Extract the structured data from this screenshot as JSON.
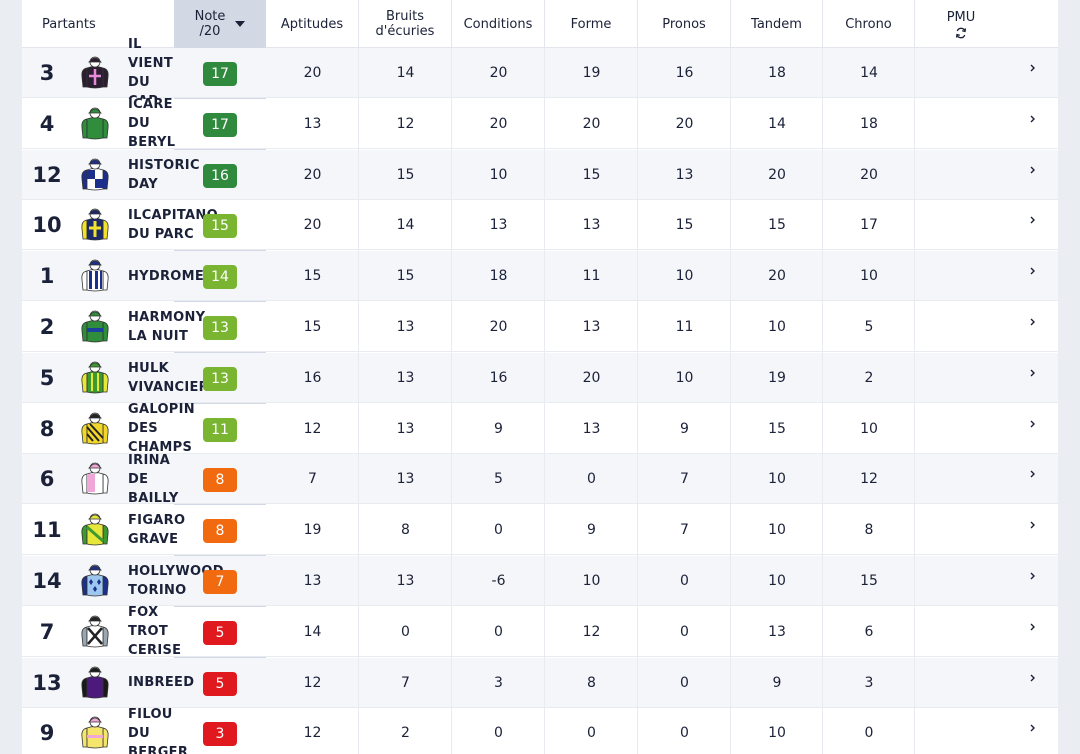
{
  "header": {
    "partants": "Partants",
    "note": "Note\n/20",
    "aptitudes": "Aptitudes",
    "bruits": "Bruits\nd'écuries",
    "conditions": "Conditions",
    "forme": "Forme",
    "pronos": "Pronos",
    "tandem": "Tandem",
    "chrono": "Chrono",
    "pmu": "PMU",
    "sort_icon": "caret-down",
    "refresh_icon": "refresh"
  },
  "colors": {
    "dark_green": "#2f8a3e",
    "light_green": "#7ab532",
    "orange": "#f26a10",
    "red": "#e0191f"
  },
  "rows": [
    {
      "num": "3",
      "name": "IL\nVIENT\nDU\nCAP",
      "note": "17",
      "tier": "dark_green",
      "scores": [
        "20",
        "14",
        "20",
        "19",
        "16",
        "18",
        "14"
      ],
      "silk": "black-pink-cross"
    },
    {
      "num": "4",
      "name": "ICARE\nDU\nBERYL",
      "note": "17",
      "tier": "dark_green",
      "scores": [
        "13",
        "12",
        "20",
        "20",
        "20",
        "14",
        "18"
      ],
      "silk": "green"
    },
    {
      "num": "12",
      "name": "HISTORIC\nDAY",
      "note": "16",
      "tier": "dark_green",
      "scores": [
        "20",
        "15",
        "10",
        "15",
        "13",
        "20",
        "20"
      ],
      "silk": "blue-white-quartered"
    },
    {
      "num": "10",
      "name": "ILCAPITANO\nDU PARC",
      "note": "15",
      "tier": "light_green",
      "scores": [
        "20",
        "14",
        "13",
        "13",
        "15",
        "15",
        "17"
      ],
      "silk": "navy-yellow-cross"
    },
    {
      "num": "1",
      "name": "HYDROME",
      "note": "14",
      "tier": "light_green",
      "scores": [
        "15",
        "15",
        "18",
        "11",
        "10",
        "20",
        "10"
      ],
      "silk": "blue-white-stripes"
    },
    {
      "num": "2",
      "name": "HARMONY\nLA NUIT",
      "note": "13",
      "tier": "light_green",
      "scores": [
        "15",
        "13",
        "20",
        "13",
        "11",
        "10",
        "5"
      ],
      "silk": "green-blue-band"
    },
    {
      "num": "5",
      "name": "HULK\nVIVANCIERE",
      "note": "13",
      "tier": "light_green",
      "scores": [
        "16",
        "13",
        "16",
        "20",
        "10",
        "19",
        "2"
      ],
      "silk": "green-yellow-stripes"
    },
    {
      "num": "8",
      "name": "GALOPIN\nDES\nCHAMPS",
      "note": "11",
      "tier": "light_green",
      "scores": [
        "12",
        "13",
        "9",
        "13",
        "9",
        "15",
        "10"
      ],
      "silk": "yellow-black-diagonal"
    },
    {
      "num": "6",
      "name": "IRINA\nDE\nBAILLY",
      "note": "8",
      "tier": "orange",
      "scores": [
        "7",
        "13",
        "5",
        "0",
        "7",
        "10",
        "12"
      ],
      "silk": "pink-white"
    },
    {
      "num": "11",
      "name": "FIGARO\nGRAVE",
      "note": "8",
      "tier": "orange",
      "scores": [
        "19",
        "8",
        "0",
        "9",
        "7",
        "10",
        "8"
      ],
      "silk": "yellow-green-sash"
    },
    {
      "num": "14",
      "name": "HOLLYWOOD\nTORINO",
      "note": "7",
      "tier": "orange",
      "scores": [
        "13",
        "13",
        "-6",
        "10",
        "0",
        "10",
        "15"
      ],
      "silk": "blue-diamonds"
    },
    {
      "num": "7",
      "name": "FOX\nTROT\nCERISE",
      "note": "5",
      "tier": "red",
      "scores": [
        "14",
        "0",
        "0",
        "12",
        "0",
        "13",
        "6"
      ],
      "silk": "white-black-cross"
    },
    {
      "num": "13",
      "name": "INBREED",
      "note": "5",
      "tier": "red",
      "scores": [
        "12",
        "7",
        "3",
        "8",
        "0",
        "9",
        "3"
      ],
      "silk": "purple-black"
    },
    {
      "num": "9",
      "name": "FILOU\nDU\nBERGER",
      "note": "3",
      "tier": "red",
      "scores": [
        "12",
        "2",
        "0",
        "0",
        "0",
        "10",
        "0"
      ],
      "silk": "yellow-pink"
    }
  ]
}
